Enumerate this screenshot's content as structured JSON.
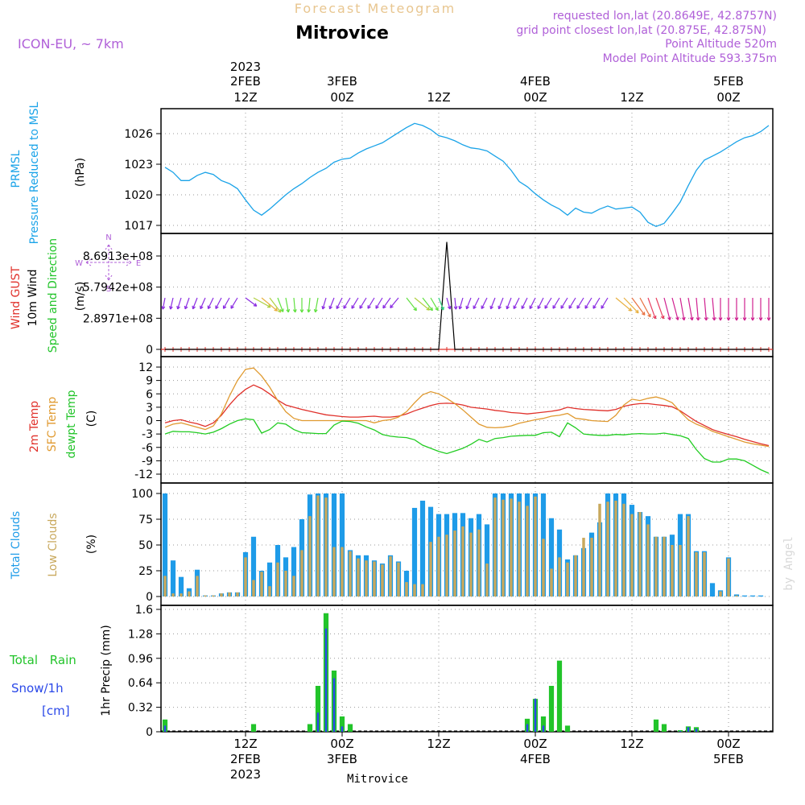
{
  "header": {
    "product": "Forecast Meteogram",
    "location": "Mitrovice",
    "model": "ICON-EU, ~ 7km",
    "requested": "requested lon,lat (20.8649E, 42.8757N)",
    "gridpoint": "grid point closest lon,lat (20.875E, 42.875N)",
    "point_altitude": "Point Altitude 520m",
    "model_altitude": "Model Point Altitude 593.375m",
    "watermark": "by Angel",
    "footer_location": "Mitrovice"
  },
  "time_axis": {
    "ticks": [
      {
        "x": 10,
        "hour": "12Z",
        "day": "2FEB",
        "year": "2023"
      },
      {
        "x": 22,
        "hour": "00Z",
        "day": "3FEB",
        "year": ""
      },
      {
        "x": 34,
        "hour": "12Z",
        "day": "",
        "year": ""
      },
      {
        "x": 46,
        "hour": "00Z",
        "day": "4FEB",
        "year": ""
      },
      {
        "x": 58,
        "hour": "12Z",
        "day": "",
        "year": ""
      },
      {
        "x": 70,
        "hour": "00Z",
        "day": "5FEB",
        "year": ""
      }
    ],
    "range": [
      -0.5,
      75.5
    ]
  },
  "chart_data": [
    {
      "type": "line",
      "panel": "pressure",
      "labels": [
        "PRMSL",
        "Pressure Reduced to MSL",
        "(hPa)"
      ],
      "yticks": [
        "1017",
        "1020",
        "1023",
        "1026"
      ],
      "ylim": [
        1016,
        1028
      ],
      "color": "#1aa3e8",
      "x": [
        0,
        1,
        2,
        3,
        4,
        5,
        6,
        7,
        8,
        9,
        10,
        11,
        12,
        13,
        14,
        15,
        16,
        17,
        18,
        19,
        20,
        21,
        22,
        23,
        24,
        25,
        26,
        27,
        28,
        29,
        30,
        31,
        32,
        33,
        34,
        35,
        36,
        37,
        38,
        39,
        40,
        41,
        42,
        43,
        44,
        45,
        46,
        47,
        48,
        49,
        50,
        51,
        52,
        53,
        54,
        55,
        56,
        57,
        58,
        59,
        60,
        61,
        62,
        63,
        64,
        65,
        66,
        67,
        68,
        69,
        70,
        71,
        72,
        73,
        74,
        75
      ],
      "values": [
        1022.7,
        1022.2,
        1021.4,
        1021.4,
        1021.9,
        1022.2,
        1022.0,
        1021.4,
        1021.1,
        1020.6,
        1019.5,
        1018.5,
        1018.0,
        1018.6,
        1019.3,
        1020.0,
        1020.6,
        1021.1,
        1021.7,
        1022.2,
        1022.6,
        1023.2,
        1023.5,
        1023.6,
        1024.1,
        1024.5,
        1024.8,
        1025.1,
        1025.6,
        1026.1,
        1026.6,
        1027.0,
        1026.8,
        1026.4,
        1025.8,
        1025.6,
        1025.3,
        1024.9,
        1024.6,
        1024.5,
        1024.3,
        1023.8,
        1023.3,
        1022.4,
        1021.3,
        1020.8,
        1020.1,
        1019.5,
        1019.0,
        1018.6,
        1018.0,
        1018.7,
        1018.3,
        1018.2,
        1018.6,
        1018.9,
        1018.6,
        1018.7,
        1018.8,
        1018.3,
        1017.3,
        1016.9,
        1017.2,
        1018.2,
        1019.3,
        1020.9,
        1022.4,
        1023.4,
        1023.8,
        1024.2,
        1024.7,
        1025.2,
        1025.6,
        1025.8,
        1026.2,
        1026.8
      ]
    },
    {
      "type": "line",
      "panel": "wind",
      "labels": [
        "Wind GUST",
        "10m Wind",
        "Speed and Direction",
        "(m/s)"
      ],
      "yticks": [
        "0",
        "2.8971e+08",
        "5.7942e+08",
        "8.6913e+08"
      ],
      "ylim": [
        0,
        1000000000.0
      ],
      "compass": [
        "N",
        "E",
        "S",
        "W"
      ],
      "series": [
        {
          "name": "Wind GUST",
          "color": "#e0302a",
          "x": [
            0,
            75
          ],
          "values": [
            0,
            0
          ]
        },
        {
          "name": "10m Wind",
          "color": "#000000",
          "x": [
            0,
            34,
            35,
            36,
            75
          ],
          "values": [
            0,
            0,
            1000000000.0,
            0,
            0
          ]
        }
      ],
      "arrow_directions": [
        10,
        12,
        16,
        18,
        20,
        22,
        24,
        26,
        28,
        30,
        300,
        280,
        300,
        320,
        340,
        350,
        355,
        0,
        5,
        10,
        15,
        20,
        25,
        30,
        30,
        30,
        30,
        30,
        35,
        40,
        320,
        300,
        320,
        330,
        340,
        345,
        355,
        15,
        20,
        25,
        25,
        20,
        20,
        20,
        25,
        25,
        25,
        25,
        30,
        30,
        30,
        30,
        30,
        30,
        30,
        30,
        300,
        310,
        320,
        330,
        340,
        340,
        345,
        345,
        350,
        350,
        355,
        355,
        355,
        0,
        0,
        0,
        0,
        0,
        0,
        0
      ],
      "arrow_lengths": [
        0.45,
        0.45,
        0.45,
        0.45,
        0.45,
        0.45,
        0.45,
        0.45,
        0.45,
        0.45,
        0.45,
        0.7,
        0.75,
        0.7,
        0.6,
        0.6,
        0.6,
        0.6,
        0.6,
        0.6,
        0.45,
        0.45,
        0.45,
        0.45,
        0.45,
        0.45,
        0.45,
        0.45,
        0.45,
        0.45,
        0.6,
        0.7,
        0.6,
        0.55,
        0.5,
        0.45,
        0.45,
        0.45,
        0.45,
        0.45,
        0.45,
        0.45,
        0.45,
        0.45,
        0.45,
        0.45,
        0.45,
        0.45,
        0.45,
        0.45,
        0.45,
        0.45,
        0.45,
        0.45,
        0.45,
        0.45,
        0.75,
        0.8,
        0.85,
        0.9,
        0.95,
        0.95,
        1.0,
        1.0,
        1.0,
        1.0,
        1.0,
        1.0,
        1.0,
        1.0,
        1.0,
        1.0,
        1.0,
        1.0,
        1.0,
        1.0
      ]
    },
    {
      "type": "line",
      "panel": "temperature",
      "labels": [
        "2m Temp",
        "SFC Temp",
        "dewpt Temp",
        "(C)"
      ],
      "yticks": [
        "-12",
        "-9",
        "-6",
        "-3",
        "0",
        "3",
        "6",
        "9",
        "12"
      ],
      "ylim": [
        -13,
        13
      ],
      "x": [
        0,
        1,
        2,
        3,
        4,
        5,
        6,
        7,
        8,
        9,
        10,
        11,
        12,
        13,
        14,
        15,
        16,
        17,
        18,
        19,
        20,
        21,
        22,
        23,
        24,
        25,
        26,
        27,
        28,
        29,
        30,
        31,
        32,
        33,
        34,
        35,
        36,
        37,
        38,
        39,
        40,
        41,
        42,
        43,
        44,
        45,
        46,
        47,
        48,
        49,
        50,
        51,
        52,
        53,
        54,
        55,
        56,
        57,
        58,
        59,
        60,
        61,
        62,
        63,
        64,
        65,
        66,
        67,
        68,
        69,
        70,
        71,
        72,
        73,
        74,
        75
      ],
      "series": [
        {
          "name": "2m Temp",
          "color": "#e0302a",
          "values": [
            -0.5,
            0,
            0.2,
            -0.3,
            -0.7,
            -1.3,
            -0.5,
            1.2,
            3.5,
            5.5,
            7.0,
            8.0,
            7.2,
            6.0,
            4.6,
            3.5,
            3.0,
            2.5,
            2.1,
            1.7,
            1.3,
            1.1,
            0.9,
            0.8,
            0.8,
            0.9,
            1.0,
            0.8,
            0.8,
            1.0,
            1.5,
            2.2,
            2.8,
            3.4,
            3.8,
            3.9,
            3.8,
            3.5,
            3.0,
            2.8,
            2.6,
            2.3,
            2.1,
            1.8,
            1.7,
            1.5,
            1.7,
            1.9,
            2.1,
            2.4,
            3.0,
            2.7,
            2.5,
            2.4,
            2.3,
            2.2,
            2.5,
            3.2,
            3.6,
            3.8,
            3.8,
            3.6,
            3.4,
            3.1,
            2.2,
            1.0,
            -0.2,
            -1.1,
            -2.0,
            -2.6,
            -3.1,
            -3.6,
            -4.2,
            -4.7,
            -5.2,
            -5.6
          ]
        },
        {
          "name": "SFC Temp",
          "color": "#e09a30",
          "values": [
            -1.5,
            -0.8,
            -0.5,
            -1.0,
            -1.5,
            -2.0,
            -1.2,
            1.5,
            5.5,
            9.0,
            11.5,
            11.8,
            10.0,
            7.5,
            4.5,
            2.0,
            0.5,
            0,
            0,
            0,
            0,
            0,
            0,
            0,
            0,
            0,
            -0.5,
            0,
            0.2,
            0.8,
            2.0,
            4.0,
            5.8,
            6.5,
            6.0,
            5.0,
            3.8,
            2.4,
            0.8,
            -0.8,
            -1.5,
            -1.6,
            -1.5,
            -1.2,
            -0.6,
            -0.2,
            0.2,
            0.5,
            1.0,
            1.2,
            1.6,
            0.5,
            0.3,
            0,
            -0.1,
            -0.2,
            1.2,
            3.5,
            4.8,
            4.5,
            5.0,
            5.3,
            4.8,
            4.0,
            2.0,
            0.2,
            -0.8,
            -1.5,
            -2.4,
            -3.0,
            -3.6,
            -4.2,
            -4.8,
            -5.2,
            -5.5,
            -5.8
          ]
        },
        {
          "name": "dewpt Temp",
          "color": "#22cc22",
          "values": [
            -3.0,
            -2.4,
            -2.5,
            -2.5,
            -2.7,
            -3.0,
            -2.6,
            -1.8,
            -0.8,
            0,
            0.4,
            0.2,
            -2.8,
            -2.0,
            -0.5,
            -0.8,
            -2.0,
            -2.7,
            -2.8,
            -2.9,
            -2.9,
            -1.0,
            -0.1,
            -0.2,
            -0.6,
            -1.4,
            -2.1,
            -3.1,
            -3.5,
            -3.7,
            -3.8,
            -4.3,
            -5.5,
            -6.2,
            -6.9,
            -7.4,
            -6.8,
            -6.2,
            -5.3,
            -4.2,
            -4.8,
            -4.0,
            -3.8,
            -3.5,
            -3.4,
            -3.3,
            -3.3,
            -2.7,
            -2.6,
            -3.6,
            -0.5,
            -1.6,
            -3.0,
            -3.2,
            -3.3,
            -3.3,
            -3.1,
            -3.2,
            -3.0,
            -2.9,
            -3.0,
            -3.0,
            -2.8,
            -3.1,
            -3.4,
            -4.0,
            -6.5,
            -8.5,
            -9.3,
            -9.3,
            -8.6,
            -8.6,
            -9.0,
            -10.0,
            -11.0,
            -11.8
          ]
        }
      ]
    },
    {
      "type": "bar",
      "panel": "clouds",
      "labels": [
        "Total Clouds",
        "Low Clouds",
        "(%)"
      ],
      "yticks": [
        "0",
        "25",
        "50",
        "75",
        "100"
      ],
      "ylim": [
        0,
        100
      ],
      "x": [
        0,
        1,
        2,
        3,
        4,
        5,
        6,
        7,
        8,
        9,
        10,
        11,
        12,
        13,
        14,
        15,
        16,
        17,
        18,
        19,
        20,
        21,
        22,
        23,
        24,
        25,
        26,
        27,
        28,
        29,
        30,
        31,
        32,
        33,
        34,
        35,
        36,
        37,
        38,
        39,
        40,
        41,
        42,
        43,
        44,
        45,
        46,
        47,
        48,
        49,
        50,
        51,
        52,
        53,
        54,
        55,
        56,
        57,
        58,
        59,
        60,
        61,
        62,
        63,
        64,
        65,
        66,
        67,
        68,
        69,
        70,
        71,
        72,
        73,
        74,
        75
      ],
      "series": [
        {
          "name": "Total Clouds",
          "color": "#1e9be8",
          "values": [
            100,
            35,
            19,
            8,
            26,
            1,
            1,
            3,
            4,
            4,
            43,
            58,
            25,
            33,
            50,
            38,
            48,
            75,
            99,
            100,
            100,
            100,
            100,
            45,
            40,
            40,
            35,
            32,
            40,
            34,
            25,
            86,
            93,
            87,
            80,
            80,
            81,
            81,
            76,
            80,
            70,
            100,
            100,
            100,
            100,
            100,
            100,
            100,
            76,
            65,
            36,
            40,
            47,
            62,
            72,
            100,
            100,
            100,
            89,
            82,
            78,
            58,
            58,
            60,
            80,
            80,
            44,
            44,
            13,
            6,
            38,
            2,
            1,
            1,
            1,
            0
          ]
        },
        {
          "name": "Low Clouds",
          "color": "#c8a85c",
          "values": [
            20,
            3,
            3,
            5,
            20,
            1,
            1,
            3,
            4,
            4,
            38,
            16,
            24,
            10,
            33,
            25,
            20,
            45,
            78,
            98,
            96,
            48,
            48,
            44,
            37,
            35,
            34,
            31,
            39,
            33,
            14,
            12,
            12,
            53,
            58,
            60,
            64,
            68,
            62,
            65,
            32,
            96,
            94,
            95,
            92,
            88,
            97,
            56,
            27,
            38,
            33,
            40,
            57,
            57,
            90,
            92,
            93,
            90,
            80,
            82,
            70,
            58,
            58,
            50,
            50,
            78,
            43,
            43,
            0,
            5,
            37,
            1,
            0,
            0,
            0,
            0
          ]
        }
      ]
    },
    {
      "type": "bar",
      "panel": "precipitation",
      "labels": [
        "Total Rain",
        "Snow/1h",
        "[cm]",
        "1hr Precip (mm)"
      ],
      "yticks": [
        "0",
        "0.32",
        "0.64",
        "0.96",
        "1.28",
        "1.6"
      ],
      "ylim": [
        0,
        1.6
      ],
      "x": [
        0,
        1,
        2,
        3,
        4,
        5,
        6,
        7,
        8,
        9,
        10,
        11,
        12,
        13,
        14,
        15,
        16,
        17,
        18,
        19,
        20,
        21,
        22,
        23,
        24,
        25,
        26,
        27,
        28,
        29,
        30,
        31,
        32,
        33,
        34,
        35,
        36,
        37,
        38,
        39,
        40,
        41,
        42,
        43,
        44,
        45,
        46,
        47,
        48,
        49,
        50,
        51,
        52,
        53,
        54,
        55,
        56,
        57,
        58,
        59,
        60,
        61,
        62,
        63,
        64,
        65,
        66,
        67,
        68,
        69,
        70,
        71,
        72,
        73,
        74,
        75
      ],
      "series": [
        {
          "name": "Total Rain",
          "color": "#22c42a",
          "values": [
            0.16,
            0,
            0,
            0,
            0,
            0,
            0,
            0,
            0,
            0,
            0,
            0.1,
            0,
            0,
            0,
            0,
            0,
            0,
            0.1,
            0.6,
            1.55,
            0.8,
            0.2,
            0.1,
            0,
            0,
            0,
            0,
            0,
            0,
            0,
            0,
            0,
            0,
            0,
            0,
            0,
            0,
            0,
            0,
            0,
            0,
            0,
            0,
            0,
            0.17,
            0.43,
            0.2,
            0.6,
            0.93,
            0.08,
            0,
            0,
            0,
            0,
            0,
            0,
            0,
            0,
            0,
            0,
            0.16,
            0.1,
            0,
            0.02,
            0.07,
            0.06,
            0,
            0,
            0,
            0,
            0,
            0,
            0,
            0,
            0
          ]
        },
        {
          "name": "Snow/1h",
          "color": "#2a48e8",
          "values": [
            0.08,
            0,
            0,
            0,
            0,
            0,
            0,
            0,
            0,
            0,
            0,
            0,
            0,
            0,
            0,
            0,
            0,
            0,
            0,
            0.25,
            1.35,
            0.7,
            0.07,
            0,
            0,
            0,
            0,
            0,
            0,
            0,
            0,
            0,
            0,
            0,
            0,
            0,
            0,
            0,
            0,
            0,
            0,
            0,
            0,
            0,
            0,
            0.1,
            0.43,
            0.08,
            0,
            0,
            0,
            0,
            0,
            0,
            0,
            0,
            0,
            0,
            0,
            0,
            0,
            0,
            0,
            0,
            0.01,
            0.06,
            0.04,
            0,
            0,
            0,
            0,
            0,
            0,
            0,
            0,
            0
          ]
        }
      ]
    }
  ]
}
